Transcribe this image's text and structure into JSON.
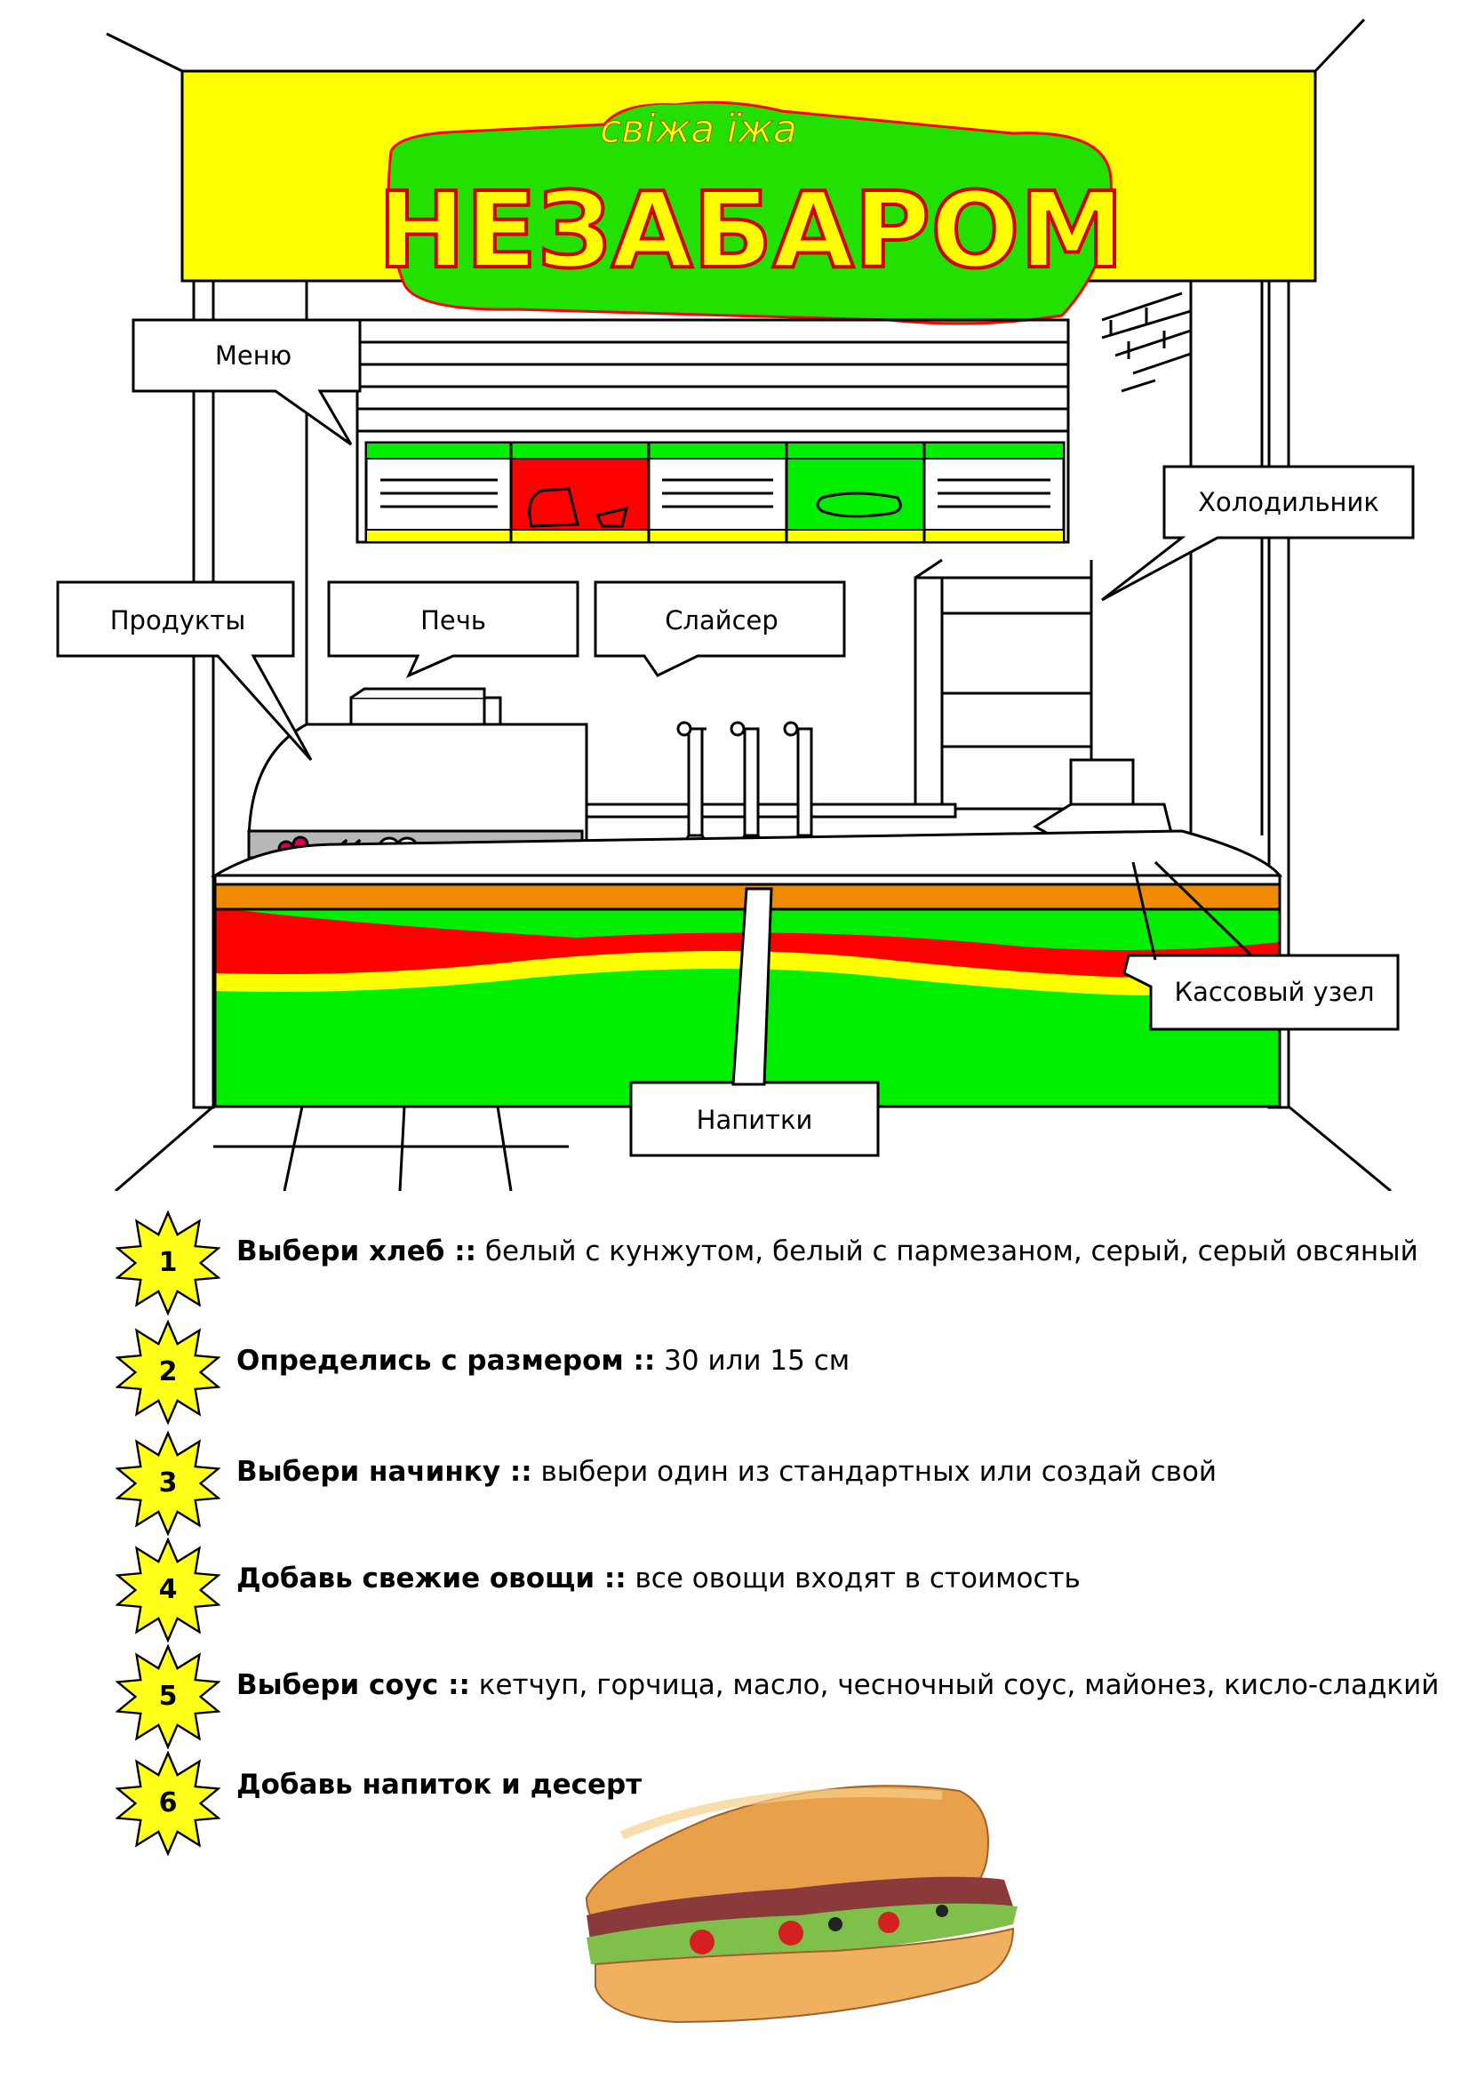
{
  "logo": {
    "subtitle": "свіжа їжа",
    "title": "НЕЗАБАРОМ"
  },
  "callouts": {
    "menu": "Меню",
    "fridge": "Холодильник",
    "products": "Продукты",
    "oven": "Печь",
    "slicer": "Слайсер",
    "cashier": "Кассовый узел",
    "drinks": "Напитки"
  },
  "steps": [
    {
      "num": "1",
      "title": "Выбери хлеб ::",
      "detail": " белый с кунжутом, белый с пармезаном, серый, серый овсяный"
    },
    {
      "num": "2",
      "title": "Определись с размером ::",
      "detail": " 30 или 15 см"
    },
    {
      "num": "3",
      "title": "Выбери начинку ::",
      "detail": " выбери один из стандартных или создай свой"
    },
    {
      "num": "4",
      "title": "Добавь свежие овощи ::",
      "detail": " все овощи входят в стоимость"
    },
    {
      "num": "5",
      "title": "Выбери соус ::",
      "detail": " кетчуп, горчица, масло, чесночный соус, майонез, кисло-сладкий"
    },
    {
      "num": "6",
      "title": "Добавь напиток и десерт",
      "detail": ""
    }
  ],
  "colors": {
    "yellow": "#ffff00",
    "green": "#00ee00",
    "red": "#ff0000",
    "orange": "#f08a00",
    "star_yellow": "#ffff1a"
  }
}
